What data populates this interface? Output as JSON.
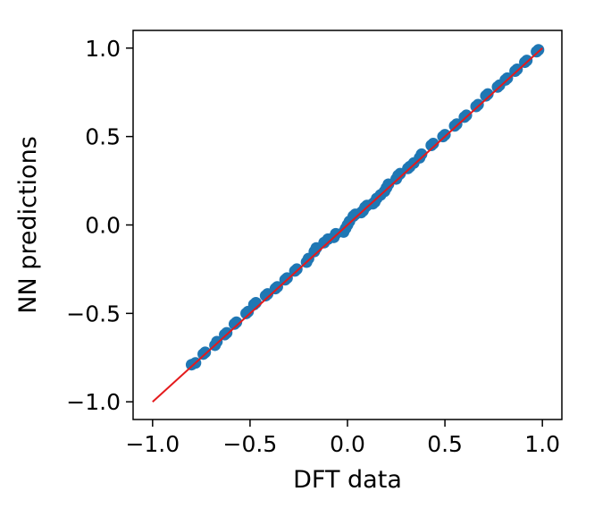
{
  "chart_data": {
    "type": "scatter",
    "title": "",
    "xlabel": "DFT data",
    "ylabel": "NN predictions",
    "xlim": [
      -1.1,
      1.1
    ],
    "ylim": [
      -1.1,
      1.1
    ],
    "xticks": [
      -1.0,
      -0.5,
      0.0,
      0.5,
      1.0
    ],
    "yticks": [
      -1.0,
      -0.5,
      0.0,
      0.5,
      1.0
    ],
    "xtick_labels": [
      "−1.0",
      "−0.5",
      "0.0",
      "0.5",
      "1.0"
    ],
    "ytick_labels": [
      "−1.0",
      "−0.5",
      "0.0",
      "0.5",
      "1.0"
    ],
    "grid": false,
    "reference_line": {
      "x": [
        -1.0,
        1.0
      ],
      "y": [
        -1.0,
        1.0
      ],
      "color": "#e41a1c"
    },
    "series": [
      {
        "color": "#1f77b4",
        "points": [
          [
            -0.8,
            -0.79
          ],
          [
            -0.78,
            -0.78
          ],
          [
            -0.74,
            -0.73
          ],
          [
            -0.73,
            -0.72
          ],
          [
            -0.68,
            -0.68
          ],
          [
            -0.67,
            -0.66
          ],
          [
            -0.63,
            -0.62
          ],
          [
            -0.62,
            -0.61
          ],
          [
            -0.58,
            -0.56
          ],
          [
            -0.57,
            -0.55
          ],
          [
            -0.52,
            -0.5
          ],
          [
            -0.51,
            -0.49
          ],
          [
            -0.48,
            -0.45
          ],
          [
            -0.47,
            -0.44
          ],
          [
            -0.42,
            -0.4
          ],
          [
            -0.41,
            -0.39
          ],
          [
            -0.37,
            -0.36
          ],
          [
            -0.36,
            -0.35
          ],
          [
            -0.32,
            -0.31
          ],
          [
            -0.31,
            -0.3
          ],
          [
            -0.27,
            -0.26
          ],
          [
            -0.26,
            -0.25
          ],
          [
            -0.21,
            -0.21
          ],
          [
            -0.2,
            -0.19
          ],
          [
            -0.17,
            -0.15
          ],
          [
            -0.16,
            -0.13
          ],
          [
            -0.12,
            -0.1
          ],
          [
            -0.1,
            -0.08
          ],
          [
            -0.07,
            -0.07
          ],
          [
            -0.06,
            -0.05
          ],
          [
            -0.02,
            -0.04
          ],
          [
            -0.01,
            -0.02
          ],
          [
            0.0,
            0.0
          ],
          [
            0.01,
            0.02
          ],
          [
            0.03,
            0.05
          ],
          [
            0.04,
            0.06
          ],
          [
            0.07,
            0.07
          ],
          [
            0.08,
            0.08
          ],
          [
            0.09,
            0.1
          ],
          [
            0.1,
            0.11
          ],
          [
            0.13,
            0.12
          ],
          [
            0.14,
            0.13
          ],
          [
            0.15,
            0.15
          ],
          [
            0.17,
            0.17
          ],
          [
            0.19,
            0.19
          ],
          [
            0.2,
            0.21
          ],
          [
            0.21,
            0.23
          ],
          [
            0.25,
            0.26
          ],
          [
            0.26,
            0.28
          ],
          [
            0.27,
            0.29
          ],
          [
            0.31,
            0.32
          ],
          [
            0.32,
            0.33
          ],
          [
            0.34,
            0.35
          ],
          [
            0.37,
            0.38
          ],
          [
            0.38,
            0.4
          ],
          [
            0.43,
            0.45
          ],
          [
            0.44,
            0.46
          ],
          [
            0.49,
            0.5
          ],
          [
            0.5,
            0.51
          ],
          [
            0.55,
            0.56
          ],
          [
            0.56,
            0.57
          ],
          [
            0.6,
            0.61
          ],
          [
            0.61,
            0.62
          ],
          [
            0.66,
            0.67
          ],
          [
            0.67,
            0.68
          ],
          [
            0.71,
            0.73
          ],
          [
            0.72,
            0.74
          ],
          [
            0.77,
            0.78
          ],
          [
            0.78,
            0.79
          ],
          [
            0.81,
            0.82
          ],
          [
            0.82,
            0.83
          ],
          [
            0.86,
            0.87
          ],
          [
            0.87,
            0.88
          ],
          [
            0.91,
            0.92
          ],
          [
            0.92,
            0.93
          ],
          [
            0.97,
            0.98
          ],
          [
            0.98,
            0.99
          ]
        ]
      }
    ]
  }
}
